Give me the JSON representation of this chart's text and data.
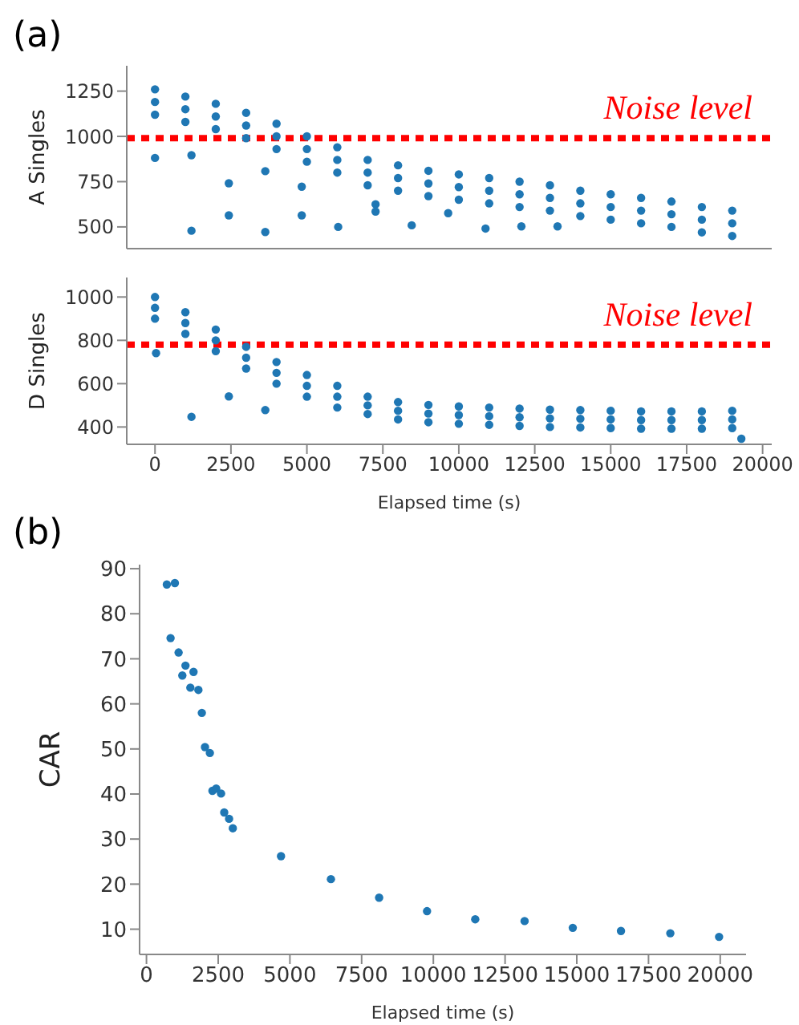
{
  "chart_data": [
    {
      "type": "scatter",
      "title": "(a)",
      "ylabel": "A Singles",
      "color": "#1f77b4",
      "marker": "circle",
      "tick_labels": "y",
      "x": [
        0,
        1000,
        2000,
        3000,
        4000,
        5000,
        6000,
        7000,
        8000,
        9000,
        10000,
        11000,
        12000,
        13000,
        14000,
        15000,
        16000,
        17000,
        18000,
        19000,
        0,
        1000,
        2000,
        3000,
        4000,
        5000,
        6000,
        7000,
        8000,
        9000,
        10000,
        11000,
        12000,
        13000,
        14000,
        15000,
        16000,
        17000,
        18000,
        19000,
        0,
        1000,
        2000,
        3000,
        4000,
        5000,
        6000,
        7000,
        8000,
        9000,
        10000,
        11000,
        12000,
        13000,
        14000,
        15000,
        16000,
        17000,
        18000,
        19000,
        0,
        1200,
        1200,
        2430,
        2430,
        3630,
        3630,
        4830,
        4830,
        6030,
        7260,
        7260,
        8450,
        9650,
        10880,
        12060,
        13250
      ],
      "values": [
        1190,
        1150,
        1110,
        1060,
        1000,
        930,
        870,
        800,
        770,
        740,
        720,
        700,
        680,
        660,
        630,
        610,
        590,
        570,
        540,
        520,
        1260,
        1220,
        1180,
        1130,
        1070,
        1000,
        940,
        870,
        840,
        810,
        790,
        770,
        750,
        730,
        700,
        680,
        660,
        640,
        610,
        590,
        1120,
        1080,
        1040,
        990,
        930,
        860,
        800,
        730,
        700,
        670,
        650,
        630,
        610,
        590,
        560,
        540,
        520,
        500,
        470,
        450,
        881,
        896,
        479,
        741,
        564,
        808,
        472,
        722,
        564,
        500,
        625,
        585,
        509,
        576,
        491,
        503,
        503
      ],
      "xlim": [
        -930,
        20300
      ],
      "xticks": [
        0,
        2500,
        5000,
        7500,
        10000,
        12500,
        15000,
        17500,
        20000
      ],
      "ylim": [
        380,
        1390
      ],
      "yticks": [
        500,
        750,
        1000,
        1250
      ],
      "ref_lines": [
        {
          "axis": "y",
          "value": 990,
          "label": "Noise level",
          "color": "#ff0000",
          "line_style": "dotted"
        }
      ]
    },
    {
      "type": "scatter",
      "ylabel": "D Singles",
      "xlabel": "Elapsed time (s)",
      "color": "#1f77b4",
      "marker": "circle",
      "x": [
        0,
        1000,
        2000,
        3000,
        4000,
        5000,
        6000,
        7000,
        8000,
        9000,
        10000,
        11000,
        12000,
        13000,
        14000,
        15000,
        16000,
        17000,
        18000,
        19000,
        0,
        1000,
        2000,
        3000,
        4000,
        5000,
        6000,
        7000,
        8000,
        9000,
        10000,
        11000,
        12000,
        13000,
        14000,
        15000,
        16000,
        17000,
        18000,
        19000,
        0,
        1000,
        2000,
        3000,
        4000,
        5000,
        6000,
        7000,
        8000,
        9000,
        10000,
        11000,
        12000,
        13000,
        14000,
        15000,
        16000,
        17000,
        18000,
        19000,
        35,
        1200,
        2430,
        3630,
        19300
      ],
      "values": [
        950,
        880,
        800,
        720,
        650,
        590,
        540,
        500,
        475,
        462,
        455,
        450,
        445,
        440,
        438,
        435,
        432,
        432,
        432,
        435,
        1000,
        930,
        850,
        770,
        700,
        640,
        590,
        540,
        515,
        502,
        495,
        490,
        485,
        480,
        478,
        475,
        472,
        472,
        472,
        475,
        900,
        830,
        750,
        670,
        600,
        540,
        490,
        460,
        435,
        422,
        415,
        410,
        405,
        400,
        398,
        395,
        392,
        392,
        392,
        395,
        741,
        447,
        541,
        478,
        346
      ],
      "xlim": [
        -930,
        20300
      ],
      "xticks": [
        0,
        2500,
        5000,
        7500,
        10000,
        12500,
        15000,
        17500,
        20000
      ],
      "ylim": [
        320,
        1090
      ],
      "yticks": [
        400,
        600,
        800,
        1000
      ],
      "ref_lines": [
        {
          "axis": "y",
          "value": 780,
          "label": "Noise level",
          "color": "#ff0000",
          "line_style": "dotted"
        }
      ]
    },
    {
      "type": "scatter",
      "title": "(b)",
      "ylabel": "CAR",
      "xlabel": "Elapsed time (s)",
      "color": "#1f77b4",
      "marker": "circle",
      "x": [
        710,
        990,
        840,
        1120,
        1250,
        1360,
        1530,
        1640,
        1810,
        1930,
        2040,
        2210,
        2300,
        2430,
        2600,
        2710,
        2880,
        3010,
        4690,
        6430,
        8110,
        9780,
        11460,
        13180,
        14860,
        16540,
        18260,
        19960
      ],
      "values": [
        86.5,
        86.8,
        74.6,
        71.4,
        66.3,
        68.5,
        63.6,
        67.1,
        63.1,
        58.0,
        50.4,
        49.1,
        40.7,
        41.2,
        40.1,
        35.9,
        34.5,
        32.4,
        26.2,
        21.1,
        17.0,
        14.0,
        12.2,
        11.8,
        10.3,
        9.6,
        9.1,
        8.3
      ],
      "xlim": [
        -240,
        20900
      ],
      "xticks": [
        0,
        2500,
        5000,
        7500,
        10000,
        12500,
        15000,
        17500,
        20000
      ],
      "ylim": [
        4.4,
        90.9
      ],
      "yticks": [
        10,
        20,
        30,
        40,
        50,
        60,
        70,
        80,
        90
      ]
    }
  ]
}
